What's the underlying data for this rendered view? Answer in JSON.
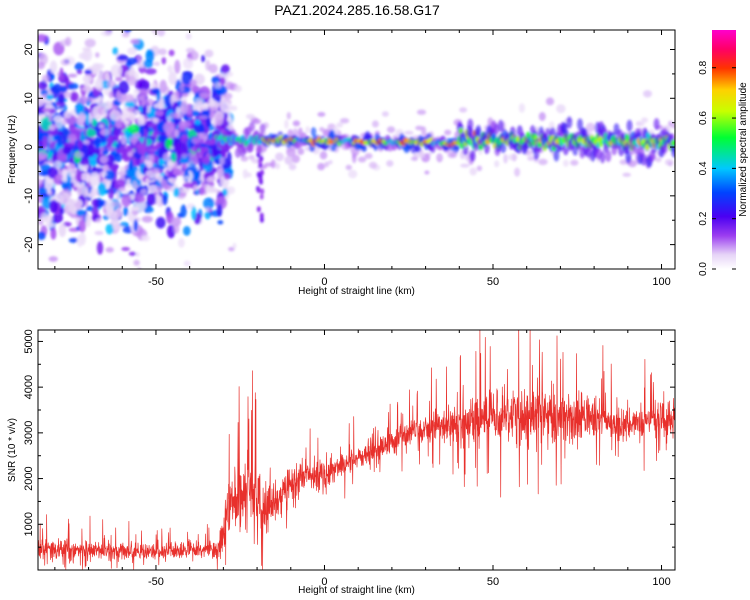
{
  "page": {
    "title": "PAZ1.2024.285.16.58.G17"
  },
  "colors": {
    "snr_line": "#e8302c",
    "axis": "#000000"
  },
  "chart_data": [
    {
      "type": "heatmap",
      "title": "PAZ1.2024.285.16.58.G17",
      "xlabel": "Height of straight line (km)",
      "ylabel": "Frequency (Hz)",
      "xlim": [
        -85,
        104
      ],
      "ylim": [
        -25,
        24
      ],
      "xticks": [
        -50,
        0,
        50,
        100
      ],
      "yticks": [
        -20,
        -10,
        0,
        10,
        20
      ],
      "colorbar": {
        "label": "Normalized spectral amplitude",
        "range": [
          0,
          0.95
        ],
        "ticks": [
          "0.0",
          "0.2",
          "0.4",
          "0.6",
          "0.8"
        ],
        "colormap": "rainbow (white-purple-blue-cyan-green-yellow-red-magenta)"
      },
      "features": [
        {
          "x_range": [
            -85,
            -30
          ],
          "frequency_center": 1,
          "frequency_spread": 12,
          "amplitude": "low-medium, scattered"
        },
        {
          "x_range": [
            -30,
            40
          ],
          "frequency_center": 1,
          "frequency_spread": 1,
          "amplitude": "high, narrow line"
        },
        {
          "x_range": [
            40,
            104
          ],
          "frequency_center": 1.5,
          "frequency_spread": 2,
          "amplitude": "medium-high"
        }
      ]
    },
    {
      "type": "line",
      "xlabel": "Height of straight line (km)",
      "ylabel": "SNR (10 * v/v)",
      "xlim": [
        -85,
        104
      ],
      "ylim": [
        0,
        5250
      ],
      "xticks": [
        -50,
        0,
        50,
        100
      ],
      "yticks": [
        1000,
        2000,
        3000,
        4000,
        5000
      ],
      "series": [
        {
          "x": [
            -85,
            -70,
            -50,
            -40,
            -32,
            -30,
            -28,
            -25,
            -22,
            -20,
            -18,
            -15,
            -12,
            -10,
            -5,
            0,
            5,
            10,
            15,
            20,
            25,
            30,
            35,
            40,
            45,
            50,
            55,
            60,
            65,
            70,
            75,
            80,
            85,
            90,
            95,
            100,
            104
          ],
          "y": [
            450,
            420,
            400,
            430,
            450,
            700,
            1600,
            1500,
            1700,
            1500,
            1300,
            1500,
            1700,
            1900,
            2100,
            2100,
            2300,
            2450,
            2600,
            2800,
            2950,
            3100,
            3150,
            3200,
            3300,
            3400,
            3500,
            3400,
            3400,
            3300,
            3350,
            3300,
            3250,
            3200,
            3250,
            3300,
            3300
          ],
          "spread": [
            250,
            250,
            200,
            200,
            200,
            500,
            800,
            900,
            900,
            900,
            700,
            500,
            450,
            400,
            350,
            350,
            350,
            300,
            300,
            300,
            300,
            400,
            450,
            500,
            550,
            650,
            800,
            750,
            700,
            650,
            550,
            500,
            500,
            400,
            400,
            400,
            450
          ]
        }
      ]
    }
  ]
}
